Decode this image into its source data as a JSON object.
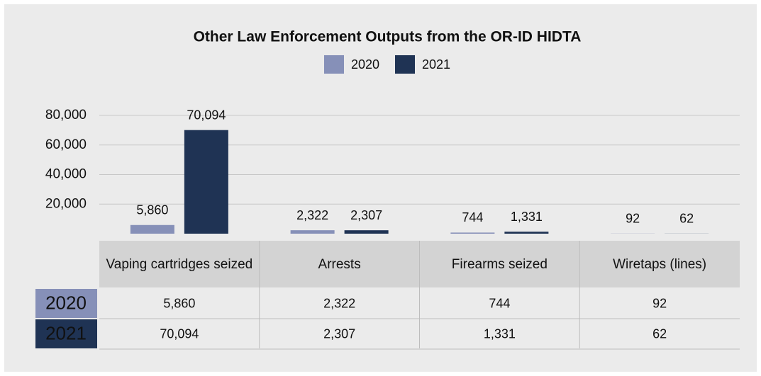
{
  "chart_data": {
    "type": "bar",
    "title": "Other Law Enforcement Outputs from the OR-ID HIDTA",
    "categories": [
      "Vaping cartridges seized",
      "Arrests",
      "Firearms seized",
      "Wiretaps (lines)"
    ],
    "series": [
      {
        "name": "2020",
        "color": "#8690b8",
        "values": [
          5860,
          2322,
          744,
          92
        ],
        "value_labels": [
          "5,860",
          "2,322",
          "744",
          "92"
        ]
      },
      {
        "name": "2021",
        "color": "#1f3354",
        "values": [
          70094,
          2307,
          1331,
          62
        ],
        "value_labels": [
          "70,094",
          "2,307",
          "1,331",
          "62"
        ]
      }
    ],
    "ylim": [
      0,
      80000
    ],
    "yticks": [
      {
        "value": 20000,
        "label": "20,000"
      },
      {
        "value": 40000,
        "label": "40,000"
      },
      {
        "value": 60000,
        "label": "60,000"
      },
      {
        "value": 80000,
        "label": "80,000"
      }
    ],
    "grid": true,
    "legend": "top"
  }
}
